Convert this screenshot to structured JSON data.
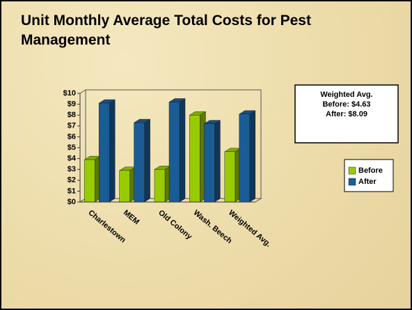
{
  "chart_data": {
    "type": "bar3d",
    "title": "Unit Monthly Average Total Costs for Pest Management",
    "categories": [
      "Charlestown",
      "MEM",
      "Old Colony",
      "Wash. Beech",
      "Weighted Avg."
    ],
    "series": [
      {
        "name": "Before",
        "color": "#99cc00",
        "values": [
          3.9,
          2.9,
          3.0,
          8.0,
          4.63
        ]
      },
      {
        "name": "After",
        "color": "#1a5c96",
        "values": [
          9.1,
          7.3,
          9.2,
          7.2,
          8.09
        ]
      }
    ],
    "ylim": [
      0,
      10
    ],
    "yticks": [
      {
        "value": 0,
        "label": "$0"
      },
      {
        "value": 1,
        "label": "$1"
      },
      {
        "value": 2,
        "label": "$2"
      },
      {
        "value": 3,
        "label": "$3"
      },
      {
        "value": 4,
        "label": "$4"
      },
      {
        "value": 5,
        "label": "$5"
      },
      {
        "value": 6,
        "label": "$6"
      },
      {
        "value": 7,
        "label": "$7"
      },
      {
        "value": 8,
        "label": "$8"
      },
      {
        "value": 9,
        "label": "$9"
      },
      {
        "value": 10,
        "label": "$10"
      }
    ],
    "annotation": [
      "Weighted Avg.",
      "Before: $4.63",
      "After: $8.09"
    ],
    "legend": "right"
  }
}
